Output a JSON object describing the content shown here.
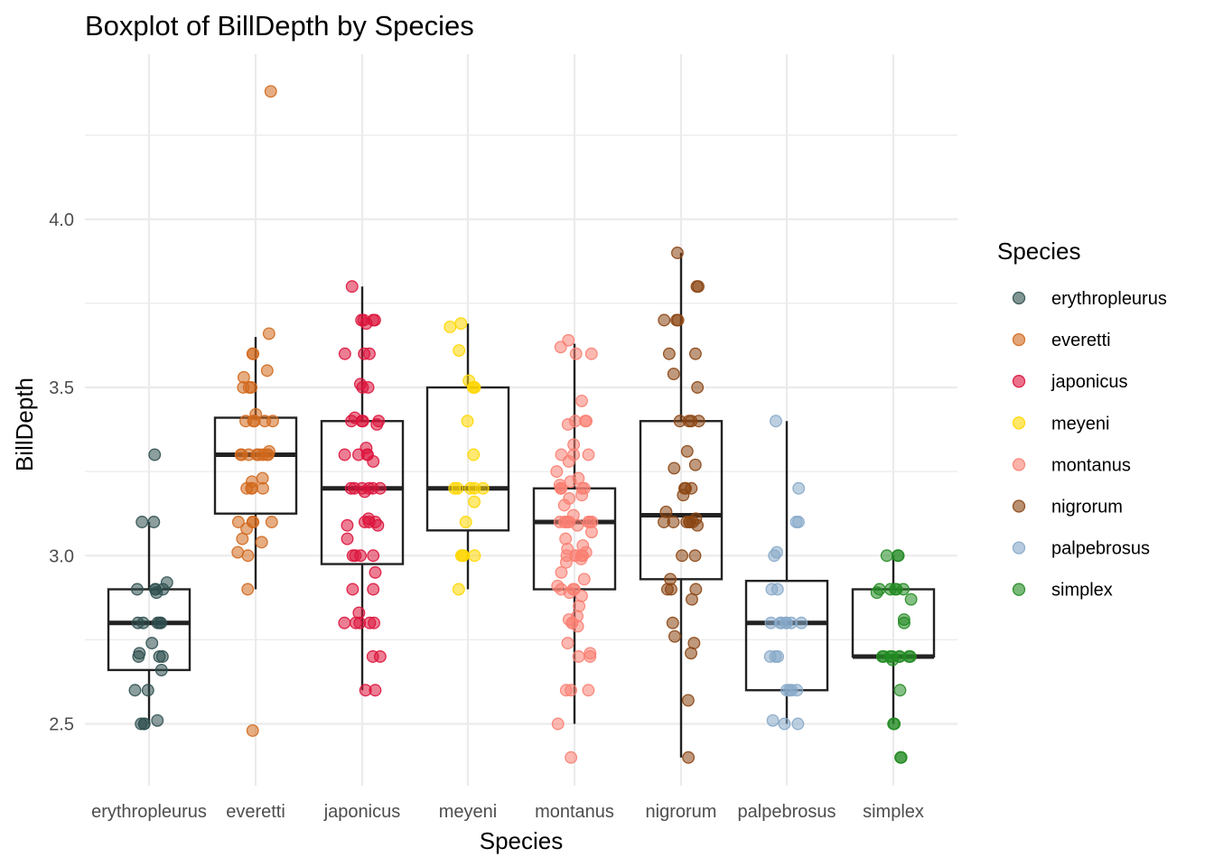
{
  "chart_data": {
    "type": "boxplot",
    "title": "Boxplot of BillDepth by Species",
    "xlabel": "Species",
    "ylabel": "BillDepth",
    "ylim": [
      2.3,
      4.45
    ],
    "y_ticks": [
      2.5,
      3.0,
      3.5,
      4.0
    ],
    "y_tick_labels": [
      "2.5",
      "3.0",
      "3.5",
      "4.0"
    ],
    "grid": true,
    "legend": {
      "title": "Species",
      "position": "right"
    },
    "categories": [
      "erythropleurus",
      "everetti",
      "japonicus",
      "meyeni",
      "montanus",
      "nigrorum",
      "palpebrosus",
      "simplex"
    ],
    "colors": [
      "#2F4F4F",
      "#D2691E",
      "#DC143C",
      "#FFD700",
      "#FA8072",
      "#8B4513",
      "#87A9C9",
      "#228B22"
    ],
    "boxes": [
      {
        "q1": 2.66,
        "median": 2.8,
        "q3": 2.9,
        "whisker_low": 2.5,
        "whisker_high": 3.1
      },
      {
        "q1": 3.125,
        "median": 3.3,
        "q3": 3.41,
        "whisker_low": 2.9,
        "whisker_high": 3.65
      },
      {
        "q1": 2.975,
        "median": 3.2,
        "q3": 3.4,
        "whisker_low": 2.6,
        "whisker_high": 3.8
      },
      {
        "q1": 3.075,
        "median": 3.2,
        "q3": 3.5,
        "whisker_low": 2.9,
        "whisker_high": 3.69
      },
      {
        "q1": 2.9,
        "median": 3.1,
        "q3": 3.2,
        "whisker_low": 2.5,
        "whisker_high": 3.63
      },
      {
        "q1": 2.93,
        "median": 3.12,
        "q3": 3.4,
        "whisker_low": 2.4,
        "whisker_high": 3.9
      },
      {
        "q1": 2.6,
        "median": 2.8,
        "q3": 2.925,
        "whisker_low": 2.5,
        "whisker_high": 3.4
      },
      {
        "q1": 2.7,
        "median": 2.7,
        "q3": 2.9,
        "whisker_low": 2.5,
        "whisker_high": 3.0
      }
    ],
    "series": [
      {
        "name": "erythropleurus",
        "values": [
          3.3,
          3.1,
          3.1,
          2.92,
          2.9,
          2.9,
          2.9,
          2.9,
          2.89,
          2.8,
          2.8,
          2.8,
          2.8,
          2.8,
          2.74,
          2.71,
          2.7,
          2.7,
          2.7,
          2.66,
          2.6,
          2.6,
          2.51,
          2.5,
          2.5,
          2.5
        ]
      },
      {
        "name": "everetti",
        "values": [
          4.38,
          3.66,
          3.6,
          3.6,
          3.55,
          3.53,
          3.5,
          3.5,
          3.5,
          3.42,
          3.4,
          3.4,
          3.4,
          3.4,
          3.4,
          3.31,
          3.3,
          3.3,
          3.3,
          3.3,
          3.3,
          3.3,
          3.3,
          3.3,
          3.23,
          3.22,
          3.2,
          3.2,
          3.2,
          3.2,
          3.1,
          3.1,
          3.1,
          3.1,
          3.08,
          3.05,
          3.04,
          3.01,
          3.0,
          2.9,
          2.48
        ]
      },
      {
        "name": "japonicus",
        "values": [
          3.8,
          3.7,
          3.7,
          3.7,
          3.7,
          3.69,
          3.6,
          3.6,
          3.6,
          3.51,
          3.5,
          3.5,
          3.41,
          3.4,
          3.4,
          3.4,
          3.4,
          3.39,
          3.32,
          3.3,
          3.3,
          3.3,
          3.3,
          3.28,
          3.2,
          3.2,
          3.2,
          3.2,
          3.2,
          3.2,
          3.19,
          3.11,
          3.1,
          3.1,
          3.1,
          3.09,
          3.09,
          3.05,
          3.0,
          3.0,
          3.0,
          3.0,
          2.95,
          2.9,
          2.9,
          2.83,
          2.8,
          2.8,
          2.8,
          2.8,
          2.8,
          2.7,
          2.7,
          2.6,
          2.6
        ]
      },
      {
        "name": "meyeni",
        "values": [
          3.69,
          3.68,
          3.61,
          3.52,
          3.5,
          3.5,
          3.5,
          3.4,
          3.3,
          3.2,
          3.2,
          3.2,
          3.2,
          3.2,
          3.16,
          3.1,
          3.0,
          3.0,
          3.0,
          3.0,
          2.9
        ]
      },
      {
        "name": "montanus",
        "values": [
          3.64,
          3.62,
          3.6,
          3.6,
          3.46,
          3.4,
          3.4,
          3.4,
          3.39,
          3.33,
          3.3,
          3.3,
          3.3,
          3.28,
          3.25,
          3.23,
          3.22,
          3.21,
          3.2,
          3.2,
          3.2,
          3.2,
          3.2,
          3.18,
          3.17,
          3.15,
          3.12,
          3.1,
          3.1,
          3.1,
          3.1,
          3.1,
          3.1,
          3.1,
          3.1,
          3.09,
          3.07,
          3.05,
          3.03,
          3.02,
          3.01,
          3.0,
          3.0,
          3.0,
          3.0,
          3.0,
          2.99,
          2.98,
          2.95,
          2.93,
          2.91,
          2.9,
          2.9,
          2.9,
          2.89,
          2.88,
          2.85,
          2.82,
          2.81,
          2.8,
          2.8,
          2.79,
          2.74,
          2.71,
          2.7,
          2.7,
          2.6,
          2.6,
          2.6,
          2.5,
          2.4
        ]
      },
      {
        "name": "nigrorum",
        "values": [
          3.9,
          3.8,
          3.8,
          3.7,
          3.7,
          3.7,
          3.6,
          3.6,
          3.54,
          3.5,
          3.4,
          3.4,
          3.4,
          3.4,
          3.31,
          3.27,
          3.26,
          3.2,
          3.2,
          3.2,
          3.18,
          3.13,
          3.11,
          3.1,
          3.1,
          3.1,
          3.1,
          3.1,
          3.1,
          3.09,
          3.0,
          3.0,
          2.93,
          2.9,
          2.9,
          2.9,
          2.87,
          2.8,
          2.76,
          2.74,
          2.71,
          2.57,
          2.4
        ]
      },
      {
        "name": "palpebrosus",
        "values": [
          3.4,
          3.2,
          3.1,
          3.1,
          3.01,
          3.0,
          2.9,
          2.9,
          2.8,
          2.8,
          2.8,
          2.8,
          2.8,
          2.8,
          2.8,
          2.7,
          2.7,
          2.7,
          2.6,
          2.6,
          2.6,
          2.6,
          2.51,
          2.5,
          2.5
        ]
      },
      {
        "name": "simplex",
        "values": [
          3.0,
          3.0,
          3.0,
          2.9,
          2.9,
          2.9,
          2.9,
          2.9,
          2.89,
          2.87,
          2.81,
          2.8,
          2.7,
          2.7,
          2.7,
          2.7,
          2.7,
          2.7,
          2.7,
          2.7,
          2.69,
          2.6,
          2.5,
          2.5,
          2.4,
          2.4
        ]
      }
    ]
  }
}
